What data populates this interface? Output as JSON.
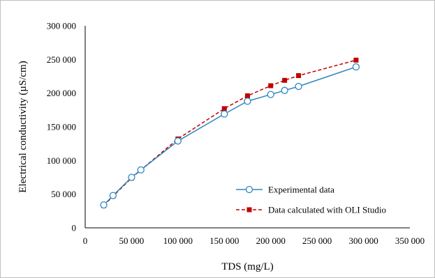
{
  "chart_data": {
    "type": "line",
    "title": "",
    "xlabel": "TDS (mg/L)",
    "ylabel": "Electrical conductivity (µS/cm)",
    "xlim": [
      0,
      350000
    ],
    "ylim": [
      0,
      300000
    ],
    "x_ticks": [
      0,
      50000,
      100000,
      150000,
      200000,
      250000,
      300000,
      350000
    ],
    "y_ticks": [
      0,
      50000,
      100000,
      150000,
      200000,
      250000,
      300000
    ],
    "x_tick_labels": [
      "0",
      "50 000",
      "100 000",
      "150 000",
      "200 000",
      "250 000",
      "300 000",
      "350 000"
    ],
    "y_tick_labels": [
      "0",
      "50 000",
      "100 000",
      "150 000",
      "200 000",
      "250 000",
      "300 000"
    ],
    "grid": false,
    "legend_position": "bottom-right",
    "series": [
      {
        "name": "Experimental data",
        "color": "#2e86c1",
        "line_style": "solid",
        "marker": "circle-open",
        "x": [
          20000,
          30000,
          50000,
          60000,
          100000,
          150000,
          175000,
          200000,
          215000,
          230000,
          292000
        ],
        "y": [
          34000,
          48000,
          75000,
          86000,
          129000,
          169000,
          188000,
          198000,
          204000,
          210000,
          239000
        ]
      },
      {
        "name": "Data calculated with OLI Studio",
        "color": "#c00000",
        "line_style": "dashed",
        "marker": "square-filled",
        "x": [
          20000,
          30000,
          50000,
          60000,
          100000,
          150000,
          175000,
          200000,
          215000,
          230000,
          292000
        ],
        "y": [
          33000,
          47000,
          74000,
          86000,
          132000,
          177000,
          196000,
          211000,
          219000,
          226000,
          249000
        ]
      }
    ]
  }
}
